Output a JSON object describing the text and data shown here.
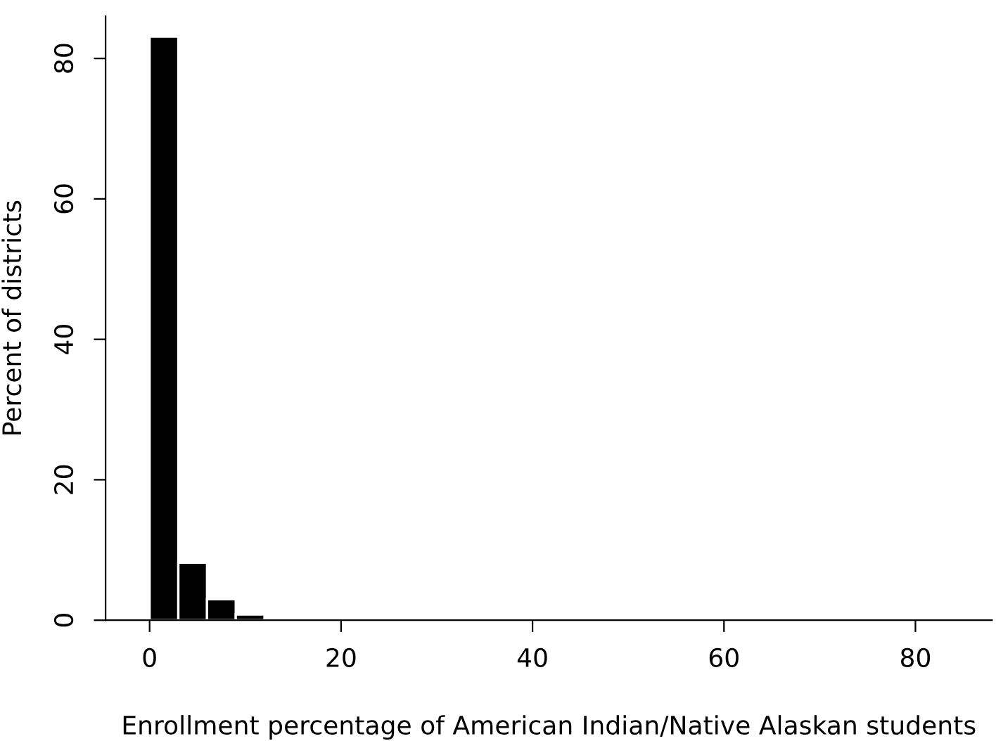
{
  "chart_data": {
    "type": "histogram",
    "xlabel": "Enrollment percentage of American Indian/Native Alaskan students",
    "ylabel": "Percent of districts",
    "bins": [
      0,
      3,
      6,
      9,
      12
    ],
    "values": [
      83.1,
      8.2,
      3.0,
      0.8
    ],
    "color": "#000000",
    "xlim": [
      -4.6,
      88
    ],
    "xticks": [
      0,
      20,
      40,
      60,
      80
    ],
    "ylim": [
      0,
      86
    ],
    "yticks": [
      0,
      20,
      40,
      60,
      80
    ],
    "grid": false
  }
}
